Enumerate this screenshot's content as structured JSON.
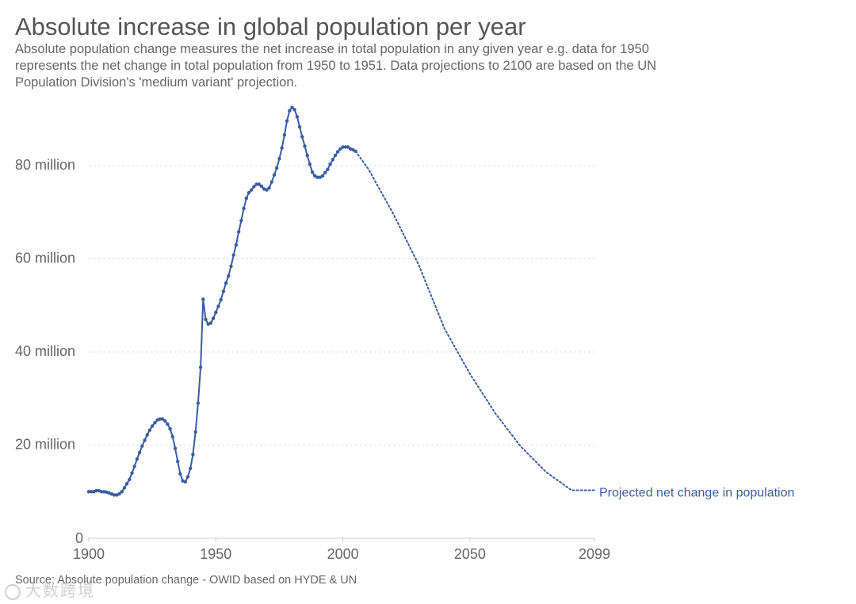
{
  "title": "Absolute increase in global population per year",
  "subtitle_lines": [
    "Absolute population change measures the net increase in total population in any given year e.g. data for 1950",
    "represents the net change in total population from 1950 to 1951. Data projections to 2100 are based on the UN",
    "Population Division's 'medium variant' projection."
  ],
  "source": "Source: Absolute population change - OWID based on HYDE & UN",
  "watermark": "大数跨境",
  "colors": {
    "series": "#3a5da0",
    "grid": "#dddddd",
    "axis": "#cccccc",
    "text": "#555555"
  },
  "chart_data": {
    "type": "line",
    "title": "Absolute increase in global population per year",
    "xlabel": "",
    "ylabel": "",
    "xlim": [
      1900,
      2099
    ],
    "ylim": [
      0,
      95000000
    ],
    "y_ticks": [
      0,
      20000000,
      40000000,
      60000000,
      80000000
    ],
    "y_tick_labels": [
      "0",
      "20 million",
      "40 million",
      "60 million",
      "80 million"
    ],
    "x_ticks": [
      1900,
      1950,
      2000,
      2050,
      2099
    ],
    "x_tick_labels": [
      "1900",
      "1950",
      "2000",
      "2050",
      "2099"
    ],
    "grid": "horizontal",
    "series": [
      {
        "name": "Net change in population",
        "style": "solid-with-markers",
        "points": [
          [
            1900,
            10.0
          ],
          [
            1901,
            10.0
          ],
          [
            1902,
            10.0
          ],
          [
            1903,
            10.2
          ],
          [
            1904,
            10.2
          ],
          [
            1905,
            10.0
          ],
          [
            1906,
            10.0
          ],
          [
            1907,
            9.9
          ],
          [
            1908,
            9.7
          ],
          [
            1909,
            9.5
          ],
          [
            1910,
            9.3
          ],
          [
            1911,
            9.3
          ],
          [
            1912,
            9.5
          ],
          [
            1913,
            10.0
          ],
          [
            1914,
            10.8
          ],
          [
            1915,
            11.7
          ],
          [
            1916,
            12.6
          ],
          [
            1917,
            14.0
          ],
          [
            1918,
            15.4
          ],
          [
            1919,
            17.0
          ],
          [
            1920,
            18.4
          ],
          [
            1921,
            19.8
          ],
          [
            1922,
            21.0
          ],
          [
            1923,
            22.2
          ],
          [
            1924,
            23.2
          ],
          [
            1925,
            24.1
          ],
          [
            1926,
            24.8
          ],
          [
            1927,
            25.4
          ],
          [
            1928,
            25.6
          ],
          [
            1929,
            25.6
          ],
          [
            1930,
            25.2
          ],
          [
            1931,
            24.5
          ],
          [
            1932,
            23.5
          ],
          [
            1933,
            21.8
          ],
          [
            1934,
            19.3
          ],
          [
            1935,
            16.5
          ],
          [
            1936,
            13.8
          ],
          [
            1937,
            12.3
          ],
          [
            1938,
            12.1
          ],
          [
            1939,
            13.2
          ],
          [
            1940,
            15.0
          ],
          [
            1941,
            18.0
          ],
          [
            1942,
            22.8
          ],
          [
            1943,
            29.0
          ],
          [
            1944,
            36.7
          ],
          [
            1945,
            51.3
          ],
          [
            1946,
            47.0
          ],
          [
            1947,
            46.0
          ],
          [
            1948,
            46.2
          ],
          [
            1949,
            47.2
          ],
          [
            1950,
            48.5
          ],
          [
            1951,
            49.8
          ],
          [
            1952,
            51.2
          ],
          [
            1953,
            53.0
          ],
          [
            1954,
            54.8
          ],
          [
            1955,
            56.3
          ],
          [
            1956,
            58.4
          ],
          [
            1957,
            60.8
          ],
          [
            1958,
            63.0
          ],
          [
            1959,
            65.8
          ],
          [
            1960,
            68.2
          ],
          [
            1961,
            70.8
          ],
          [
            1962,
            73.0
          ],
          [
            1963,
            74.2
          ],
          [
            1964,
            74.8
          ],
          [
            1965,
            75.5
          ],
          [
            1966,
            76.0
          ],
          [
            1967,
            76.0
          ],
          [
            1968,
            75.6
          ],
          [
            1969,
            75.0
          ],
          [
            1970,
            74.8
          ],
          [
            1971,
            75.2
          ],
          [
            1972,
            76.5
          ],
          [
            1973,
            78.0
          ],
          [
            1974,
            79.5
          ],
          [
            1975,
            81.5
          ],
          [
            1976,
            83.8
          ],
          [
            1977,
            86.6
          ],
          [
            1978,
            89.6
          ],
          [
            1979,
            91.8
          ],
          [
            1980,
            92.5
          ],
          [
            1981,
            92.0
          ],
          [
            1982,
            90.5
          ],
          [
            1983,
            88.3
          ],
          [
            1984,
            86.2
          ],
          [
            1985,
            84.2
          ],
          [
            1986,
            82.2
          ],
          [
            1987,
            80.3
          ],
          [
            1988,
            78.6
          ],
          [
            1989,
            77.8
          ],
          [
            1990,
            77.5
          ],
          [
            1991,
            77.5
          ],
          [
            1992,
            77.8
          ],
          [
            1993,
            78.5
          ],
          [
            1994,
            79.2
          ],
          [
            1995,
            80.3
          ],
          [
            1996,
            81.3
          ],
          [
            1997,
            82.2
          ],
          [
            1998,
            83.0
          ],
          [
            1999,
            83.6
          ],
          [
            2000,
            84.0
          ],
          [
            2001,
            84.0
          ],
          [
            2002,
            84.0
          ],
          [
            2003,
            83.6
          ],
          [
            2004,
            83.4
          ],
          [
            2005,
            83.1
          ]
        ]
      },
      {
        "name": "Projected net change in population",
        "style": "dotted",
        "label": "Projected net change in population",
        "points": [
          [
            2005,
            83.1
          ],
          [
            2010,
            79.3
          ],
          [
            2020,
            69.5
          ],
          [
            2030,
            58.5
          ],
          [
            2040,
            45.0
          ],
          [
            2050,
            35.3
          ],
          [
            2060,
            26.8
          ],
          [
            2070,
            19.7
          ],
          [
            2080,
            14.2
          ],
          [
            2090,
            10.3
          ],
          [
            2099,
            10.3
          ]
        ]
      }
    ]
  }
}
